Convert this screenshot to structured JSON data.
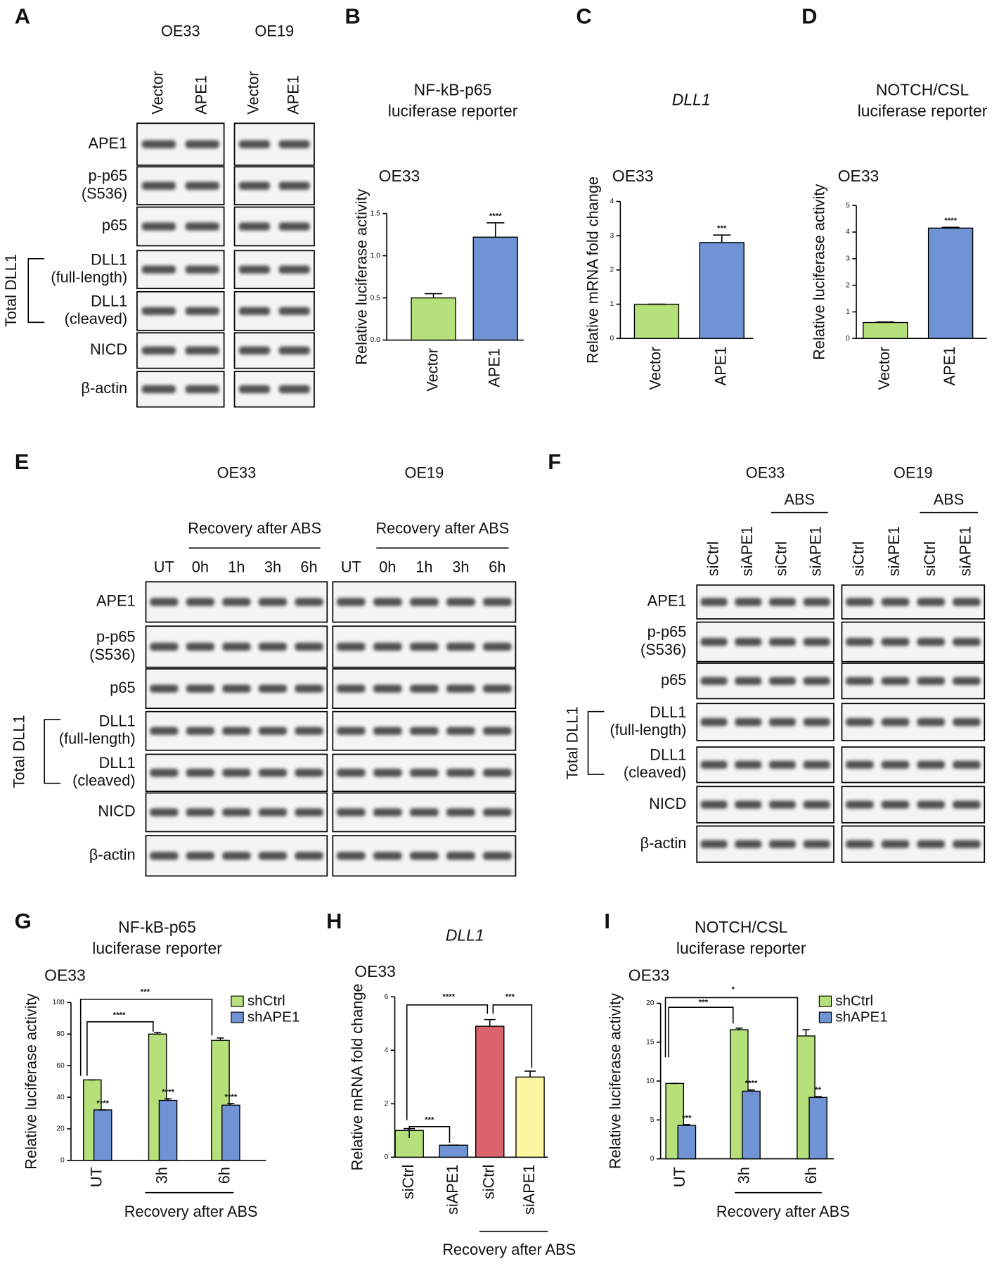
{
  "panel_letters": [
    "A",
    "B",
    "C",
    "D",
    "E",
    "F",
    "G",
    "H",
    "I"
  ],
  "blots": {
    "A": {
      "cell_lines": [
        "OE33",
        "OE19"
      ],
      "lanes": [
        "Vector",
        "APE1"
      ],
      "rows": [
        [
          "APE1"
        ],
        [
          "p-p65",
          "(S536)"
        ],
        [
          "p65"
        ],
        [
          "DLL1",
          "(full-length)"
        ],
        [
          "DLL1",
          "(cleaved)"
        ],
        [
          "NICD"
        ],
        [
          "β-actin"
        ]
      ],
      "group": "Total DLL1"
    },
    "E": {
      "cell_lines": [
        "OE33",
        "OE19"
      ],
      "treatment": "Recovery after ABS",
      "lanes": [
        "UT",
        "0h",
        "1h",
        "3h",
        "6h"
      ],
      "rows": [
        [
          "APE1"
        ],
        [
          "p-p65",
          "(S536)"
        ],
        [
          "p65"
        ],
        [
          "DLL1",
          "(full-length)"
        ],
        [
          "DLL1",
          "(cleaved)"
        ],
        [
          "NICD"
        ],
        [
          "β-actin"
        ]
      ],
      "group": "Total DLL1"
    },
    "F": {
      "cell_lines": [
        "OE33",
        "OE19"
      ],
      "treatment": "ABS",
      "lanes": [
        "siCtrl",
        "siAPE1",
        "siCtrl",
        "siAPE1"
      ],
      "rows": [
        [
          "APE1"
        ],
        [
          "p-p65",
          "(S536)"
        ],
        [
          "p65"
        ],
        [
          "DLL1",
          "(full-length)"
        ],
        [
          "DLL1",
          "(cleaved)"
        ],
        [
          "NICD"
        ],
        [
          "β-actin"
        ]
      ],
      "group": "Total DLL1"
    }
  },
  "chart_data": [
    {
      "type": "bar",
      "title": [
        "NF-kB-p65",
        "luciferase reporter"
      ],
      "subtitle": "OE33",
      "ylabel": "Relative luciferase activity",
      "categories": [
        "Vector",
        "APE1"
      ],
      "values": [
        0.5,
        1.22
      ],
      "errors": [
        0.05,
        0.17
      ],
      "colors": [
        "#b5e07a",
        "#6f93d4"
      ],
      "significance": [
        null,
        "****"
      ],
      "ylim": [
        0,
        1.5
      ],
      "yticks": [
        {
          "value": 0,
          "label": "0.0"
        },
        {
          "value": 0.5,
          "label": "0.5"
        },
        {
          "value": 1,
          "label": "1.0"
        },
        {
          "value": 1.5,
          "label": "1.5"
        }
      ]
    },
    {
      "type": "bar",
      "title": [
        "DLL1"
      ],
      "subtitle": "OE33",
      "ylabel": "Relative mRNA fold change",
      "categories": [
        "Vector",
        "APE1"
      ],
      "values": [
        1.0,
        2.8
      ],
      "errors": [
        0,
        0.22
      ],
      "colors": [
        "#b5e07a",
        "#6f93d4"
      ],
      "significance": [
        null,
        "***"
      ],
      "ylim": [
        0,
        4
      ],
      "yticks": [
        0,
        1,
        2,
        3,
        4
      ]
    },
    {
      "type": "bar",
      "title": [
        "NOTCH/CSL",
        "luciferase reporter"
      ],
      "subtitle": "OE33",
      "ylabel": "Relative luciferase activity",
      "categories": [
        "Vector",
        "APE1"
      ],
      "values": [
        0.6,
        4.15
      ],
      "errors": [
        0.02,
        0.03
      ],
      "colors": [
        "#b5e07a",
        "#6f93d4"
      ],
      "significance": [
        null,
        "****"
      ],
      "ylim": [
        0,
        5
      ],
      "yticks": [
        0,
        1,
        2,
        3,
        4,
        5
      ]
    },
    {
      "type": "bar",
      "title": [
        "NF-kB-p65",
        "luciferase reporter"
      ],
      "subtitle": "OE33",
      "ylabel": "Relative luciferase activity",
      "xlabel": "Recovery after ABS",
      "categories": [
        "UT",
        "3h",
        "6h"
      ],
      "legend": "upper right",
      "series": [
        {
          "name": "shCtrl",
          "color": "#b5e07a",
          "values": [
            51,
            80,
            76
          ],
          "errors": [
            0,
            1,
            1.5
          ]
        },
        {
          "name": "shAPE1",
          "color": "#6f93d4",
          "values": [
            32,
            38,
            35
          ],
          "errors": [
            0,
            1,
            1
          ],
          "significance": [
            "****",
            "****",
            "****"
          ]
        }
      ],
      "comparisons": [
        "****",
        "***"
      ],
      "ylim": [
        0,
        100
      ],
      "yticks": [
        0,
        20,
        40,
        60,
        80,
        100
      ]
    },
    {
      "type": "bar",
      "title": [
        "DLL1"
      ],
      "subtitle": "OE33",
      "ylabel": "Relative mRNA fold change",
      "xlabel": "Recovery after ABS",
      "categories": [
        "siCtrl",
        "siAPE1",
        "siCtrl",
        "siAPE1"
      ],
      "values": [
        1.0,
        0.45,
        4.9,
        3.0
      ],
      "errors": [
        0.07,
        0,
        0.25,
        0.22
      ],
      "colors": [
        "#b5e07a",
        "#6f93d4",
        "#d9646c",
        "#fdf6a0"
      ],
      "comparisons": [
        "***",
        "****",
        "***"
      ],
      "ylim": [
        0,
        6
      ],
      "yticks": [
        0,
        2,
        4,
        6
      ]
    },
    {
      "type": "bar",
      "title": [
        "NOTCH/CSL",
        "luciferase reporter"
      ],
      "subtitle": "OE33",
      "ylabel": "Relative luciferase activity",
      "xlabel": "Recovery after ABS",
      "categories": [
        "UT",
        "3h",
        "6h"
      ],
      "legend": "upper right",
      "series": [
        {
          "name": "shCtrl",
          "color": "#b5e07a",
          "values": [
            9.7,
            16.6,
            15.8
          ],
          "errors": [
            0,
            0.2,
            0.8
          ]
        },
        {
          "name": "shAPE1",
          "color": "#6f93d4",
          "values": [
            4.3,
            8.7,
            7.9
          ],
          "errors": [
            0.1,
            0.15,
            0.1
          ],
          "significance": [
            "***",
            "****",
            "**"
          ]
        }
      ],
      "comparisons": [
        "***",
        "*"
      ],
      "ylim": [
        0,
        20
      ],
      "yticks": [
        0,
        5,
        10,
        15,
        20
      ]
    }
  ]
}
